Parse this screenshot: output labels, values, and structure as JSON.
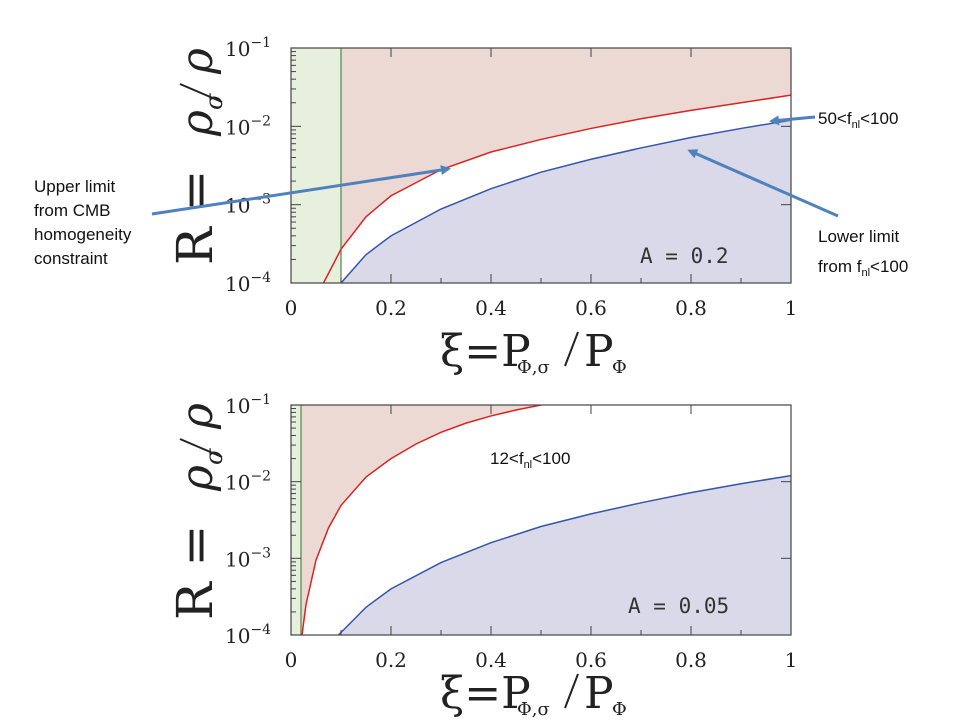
{
  "chart_data": [
    {
      "type": "area",
      "x_range": [
        0,
        1
      ],
      "y_range": [
        0.0001,
        0.1
      ],
      "y_scale": "log",
      "x_ticks": [
        "0",
        "0.2",
        "0.4",
        "0.6",
        "0.8",
        "1"
      ],
      "y_ticks": [
        {
          "base": "10",
          "exp": "−1"
        },
        {
          "base": "10",
          "exp": "−2"
        },
        {
          "base": "10",
          "exp": "−3"
        },
        {
          "base": "10",
          "exp": "−4"
        }
      ],
      "ylabel": {
        "lhs": "R =",
        "sym": "ρ",
        "sub": "σ",
        "den": "ρ"
      },
      "xlabel": {
        "lhs": "ξ=P",
        "sub1": "Φ,σ",
        "mid": "P",
        "sub2": "Φ"
      },
      "label_A": "A = 0.2",
      "cmb_limit_x": 0.1,
      "series": [
        {
          "role": "upper",
          "color": "#dd2222",
          "fill": "#ecd9d3",
          "x": [
            0.065,
            0.1,
            0.15,
            0.2,
            0.3,
            0.4,
            0.5,
            0.6,
            0.7,
            0.8,
            0.9,
            1.0
          ],
          "y": [
            0.0001,
            0.00027,
            0.0007,
            0.0013,
            0.0028,
            0.0047,
            0.0068,
            0.0094,
            0.0125,
            0.016,
            0.02,
            0.025
          ]
        },
        {
          "role": "lower",
          "color": "#3355aa",
          "fill": "#d9d9e9",
          "x": [
            0.1,
            0.15,
            0.2,
            0.3,
            0.4,
            0.5,
            0.6,
            0.7,
            0.8,
            0.9,
            1.0
          ],
          "y": [
            0.0001,
            0.00023,
            0.0004,
            0.00088,
            0.0016,
            0.0026,
            0.0038,
            0.0053,
            0.0072,
            0.0094,
            0.012
          ]
        }
      ]
    },
    {
      "type": "area",
      "x_range": [
        0,
        1
      ],
      "y_range": [
        0.0001,
        0.1
      ],
      "y_scale": "log",
      "x_ticks": [
        "0",
        "0.2",
        "0.4",
        "0.6",
        "0.8",
        "1"
      ],
      "y_ticks": [
        {
          "base": "10",
          "exp": "−1"
        },
        {
          "base": "10",
          "exp": "−2"
        },
        {
          "base": "10",
          "exp": "−3"
        },
        {
          "base": "10",
          "exp": "−4"
        }
      ],
      "ylabel": {
        "lhs": "R =",
        "sym": "ρ",
        "sub": "σ",
        "den": "ρ"
      },
      "xlabel": {
        "lhs": "ξ=P",
        "sub1": "Φ,σ",
        "mid": "P",
        "sub2": "Φ"
      },
      "label_A": "A = 0.05",
      "cmb_limit_x": 0.02,
      "series": [
        {
          "role": "upper",
          "color": "#dd2222",
          "fill": "#ecd9d3",
          "x": [
            0.022,
            0.03,
            0.05,
            0.075,
            0.1,
            0.15,
            0.2,
            0.25,
            0.3,
            0.35,
            0.4,
            0.45,
            0.5
          ],
          "y": [
            0.0001,
            0.00025,
            0.00095,
            0.0025,
            0.0049,
            0.0115,
            0.02,
            0.031,
            0.044,
            0.058,
            0.072,
            0.086,
            0.1
          ]
        },
        {
          "role": "lower",
          "color": "#3355aa",
          "fill": "#d9d9e9",
          "x": [
            0.095,
            0.15,
            0.2,
            0.3,
            0.4,
            0.5,
            0.6,
            0.7,
            0.8,
            0.9,
            1.0
          ],
          "y": [
            0.0001,
            0.00023,
            0.0004,
            0.00088,
            0.0016,
            0.0026,
            0.0038,
            0.0053,
            0.0072,
            0.0094,
            0.012
          ]
        }
      ]
    }
  ],
  "annotations": {
    "upper_limit": [
      "Upper limit",
      "from CMB",
      "homogeneity",
      "constraint"
    ],
    "lower_limit": {
      "line1": "Lower limit",
      "line2_pre": "from f",
      "line2_sub": "nl",
      "line2_post": "<100"
    },
    "top_range": {
      "pre": "50<f",
      "sub": "nl",
      "post": "<100"
    },
    "bottom_range": {
      "pre": "12<f",
      "sub": "nl",
      "post": "<100"
    },
    "arrow_color": "#4f81bd"
  }
}
